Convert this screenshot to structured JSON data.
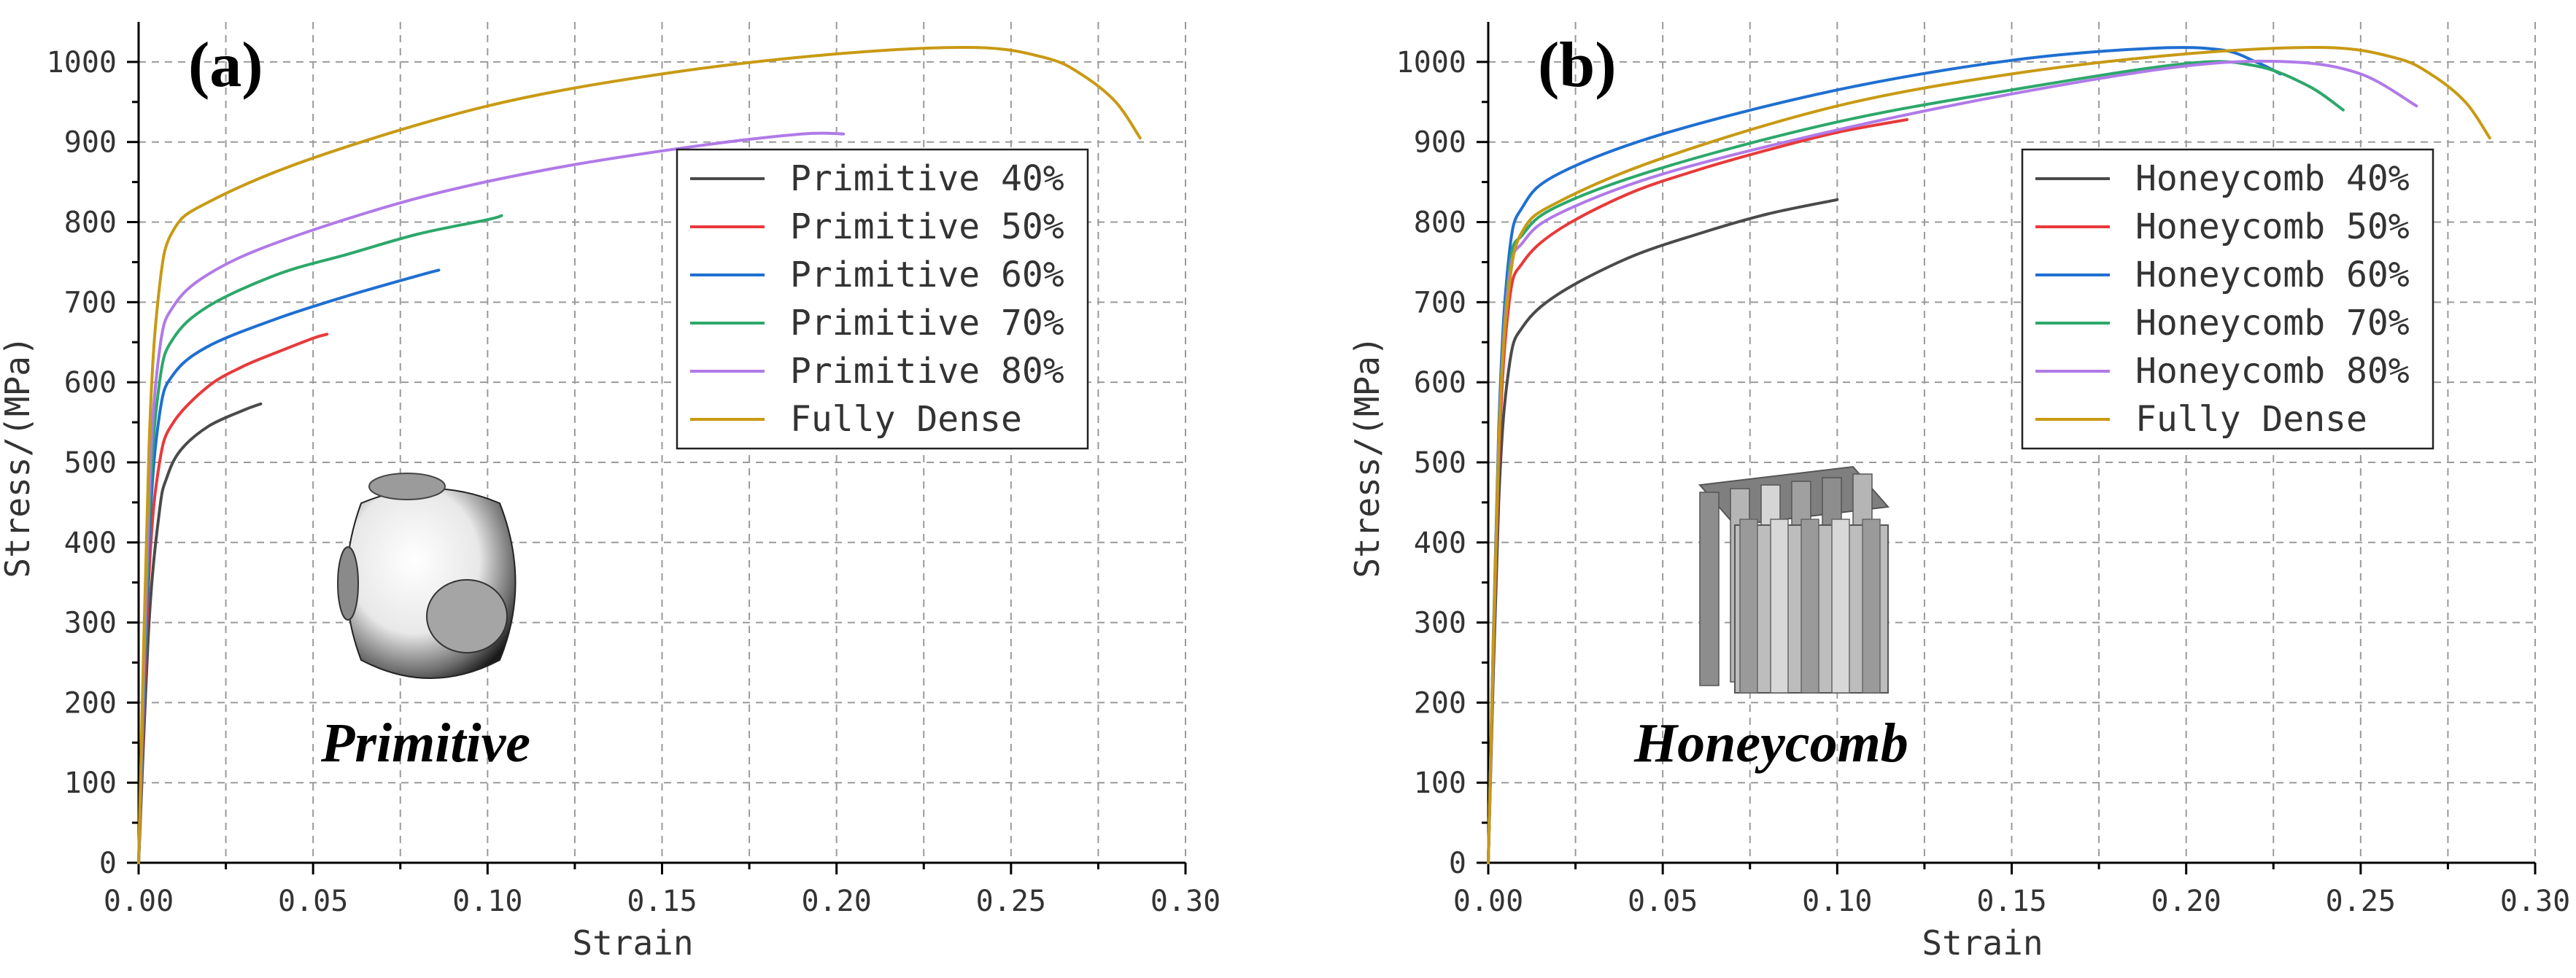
{
  "chart_data": [
    {
      "type": "line",
      "panel_label": "(a)",
      "xlabel": "Strain",
      "ylabel": "Stress/(MPa)",
      "xlim": [
        0,
        0.3
      ],
      "ylim": [
        0,
        1050
      ],
      "x_ticks": [
        "0.00",
        "0.05",
        "0.10",
        "0.15",
        "0.20",
        "0.25",
        "0.30"
      ],
      "y_ticks": [
        "0",
        "100",
        "200",
        "300",
        "400",
        "500",
        "600",
        "700",
        "800",
        "900",
        "1000"
      ],
      "grid": true,
      "legend_position": "top-right",
      "inset_label": "Primitive",
      "series": [
        {
          "name": "Primitive 40%",
          "color": "#4a4a4a",
          "x": [
            0,
            0.003,
            0.006,
            0.008,
            0.012,
            0.02,
            0.03,
            0.035
          ],
          "y": [
            0,
            300,
            440,
            480,
            515,
            545,
            565,
            573
          ]
        },
        {
          "name": "Primitive 50%",
          "color": "#e8393a",
          "x": [
            0,
            0.003,
            0.006,
            0.01,
            0.02,
            0.03,
            0.04,
            0.05,
            0.054
          ],
          "y": [
            0,
            360,
            500,
            550,
            595,
            620,
            638,
            655,
            660
          ]
        },
        {
          "name": "Primitive 60%",
          "color": "#1f6fd1",
          "x": [
            0,
            0.003,
            0.006,
            0.01,
            0.02,
            0.04,
            0.06,
            0.08,
            0.086
          ],
          "y": [
            0,
            400,
            560,
            610,
            645,
            680,
            708,
            733,
            740
          ]
        },
        {
          "name": "Primitive 70%",
          "color": "#2ca86a",
          "x": [
            0,
            0.003,
            0.006,
            0.01,
            0.02,
            0.04,
            0.06,
            0.08,
            0.1,
            0.104
          ],
          "y": [
            0,
            430,
            600,
            655,
            695,
            735,
            760,
            785,
            803,
            808
          ]
        },
        {
          "name": "Primitive 80%",
          "color": "#b07ae8",
          "x": [
            0,
            0.003,
            0.006,
            0.01,
            0.02,
            0.04,
            0.08,
            0.12,
            0.16,
            0.19,
            0.202
          ],
          "y": [
            0,
            460,
            640,
            695,
            735,
            775,
            830,
            868,
            895,
            910,
            910
          ]
        },
        {
          "name": "Fully Dense",
          "color": "#c89a14",
          "x": [
            0,
            0.003,
            0.006,
            0.01,
            0.02,
            0.05,
            0.1,
            0.15,
            0.2,
            0.24,
            0.26,
            0.27,
            0.28,
            0.287
          ],
          "y": [
            0,
            520,
            720,
            790,
            825,
            880,
            945,
            985,
            1010,
            1018,
            1005,
            985,
            950,
            905
          ]
        }
      ]
    },
    {
      "type": "line",
      "panel_label": "(b)",
      "xlabel": "Strain",
      "ylabel": "Stress/(MPa)",
      "xlim": [
        0,
        0.3
      ],
      "ylim": [
        0,
        1050
      ],
      "x_ticks": [
        "0.00",
        "0.05",
        "0.10",
        "0.15",
        "0.20",
        "0.25",
        "0.30"
      ],
      "y_ticks": [
        "0",
        "100",
        "200",
        "300",
        "400",
        "500",
        "600",
        "700",
        "800",
        "900",
        "1000"
      ],
      "grid": true,
      "legend_position": "top-right",
      "inset_label": "Honeycomb",
      "series": [
        {
          "name": "Honeycomb 40%",
          "color": "#4a4a4a",
          "x": [
            0,
            0.003,
            0.006,
            0.01,
            0.02,
            0.04,
            0.06,
            0.08,
            0.1
          ],
          "y": [
            0,
            450,
            620,
            670,
            710,
            755,
            785,
            810,
            828
          ]
        },
        {
          "name": "Honeycomb 50%",
          "color": "#e8393a",
          "x": [
            0,
            0.003,
            0.006,
            0.01,
            0.02,
            0.04,
            0.06,
            0.08,
            0.1,
            0.12
          ],
          "y": [
            0,
            500,
            700,
            750,
            790,
            835,
            865,
            890,
            912,
            928
          ]
        },
        {
          "name": "Honeycomb 60%",
          "color": "#1f6fd1",
          "x": [
            0,
            0.003,
            0.006,
            0.01,
            0.02,
            0.05,
            0.1,
            0.15,
            0.19,
            0.21,
            0.22,
            0.227
          ],
          "y": [
            0,
            540,
            760,
            820,
            860,
            910,
            965,
            1002,
            1017,
            1015,
            1000,
            985
          ]
        },
        {
          "name": "Honeycomb 70%",
          "color": "#2ca86a",
          "x": [
            0,
            0.003,
            0.006,
            0.01,
            0.02,
            0.05,
            0.1,
            0.15,
            0.2,
            0.22,
            0.235,
            0.245
          ],
          "y": [
            0,
            520,
            740,
            785,
            820,
            868,
            925,
            965,
            998,
            995,
            970,
            940
          ]
        },
        {
          "name": "Honeycomb 80%",
          "color": "#b07ae8",
          "x": [
            0,
            0.003,
            0.006,
            0.01,
            0.02,
            0.05,
            0.1,
            0.15,
            0.2,
            0.23,
            0.25,
            0.266
          ],
          "y": [
            0,
            520,
            730,
            775,
            810,
            860,
            915,
            960,
            995,
            1000,
            985,
            945
          ]
        },
        {
          "name": "Fully Dense",
          "color": "#c89a14",
          "x": [
            0,
            0.003,
            0.006,
            0.01,
            0.02,
            0.05,
            0.1,
            0.15,
            0.2,
            0.24,
            0.26,
            0.27,
            0.28,
            0.287
          ],
          "y": [
            0,
            520,
            720,
            790,
            825,
            880,
            945,
            985,
            1010,
            1018,
            1005,
            985,
            950,
            905
          ]
        }
      ]
    }
  ]
}
